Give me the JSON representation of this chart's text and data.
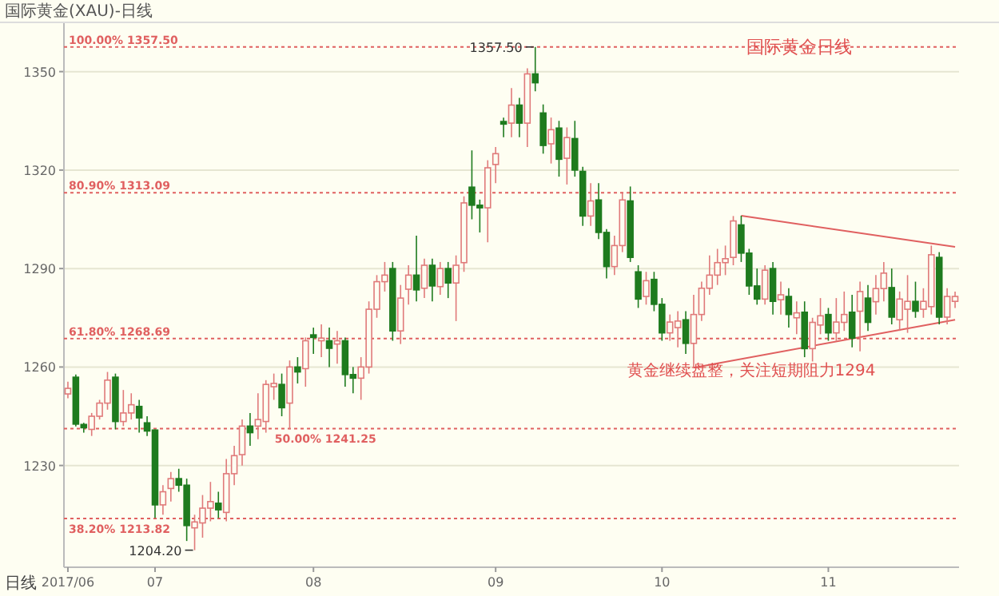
{
  "chart_data": {
    "type": "candlestick",
    "title": "国际黄金(XAU)-日线",
    "xlabel": "日线",
    "categories": [
      "2017/06",
      null,
      null,
      null,
      null,
      null,
      null,
      null,
      null,
      null,
      null,
      "07",
      null,
      null,
      null,
      null,
      null,
      null,
      null,
      null,
      null,
      null,
      null,
      null,
      null,
      null,
      null,
      null,
      null,
      null,
      null,
      "08",
      null,
      null,
      null,
      null,
      null,
      null,
      null,
      null,
      null,
      null,
      null,
      null,
      null,
      null,
      null,
      null,
      null,
      null,
      null,
      null,
      null,
      null,
      "09",
      null,
      null,
      null,
      null,
      null,
      null,
      null,
      null,
      null,
      null,
      null,
      null,
      null,
      null,
      null,
      null,
      null,
      null,
      null,
      null,
      "10",
      null,
      null,
      null,
      null,
      null,
      null,
      null,
      null,
      null,
      null,
      null,
      null,
      null,
      null,
      null,
      null,
      null,
      null,
      null,
      null,
      "11",
      null,
      null,
      null,
      null,
      null,
      null,
      null,
      null,
      null,
      null,
      null,
      null,
      null,
      null,
      null,
      null
    ],
    "ohlc": [
      [
        1251.8,
        1255.5,
        1250.5,
        1253.5
      ],
      [
        1256.9,
        1257.7,
        1241.9,
        1242.6
      ],
      [
        1242.5,
        1243,
        1240,
        1241.5
      ],
      [
        1241,
        1246,
        1239,
        1245
      ],
      [
        1245,
        1250,
        1244,
        1249
      ],
      [
        1249,
        1258.5,
        1247,
        1256
      ],
      [
        1256.9,
        1258,
        1241,
        1243.4
      ],
      [
        1243.4,
        1253,
        1242,
        1246
      ],
      [
        1246,
        1252,
        1244,
        1248.5
      ],
      [
        1248,
        1250,
        1240,
        1244.5
      ],
      [
        1243,
        1245,
        1239,
        1240.5
      ],
      [
        1240.8,
        1241,
        1214,
        1218
      ],
      [
        1218,
        1224,
        1215,
        1222
      ],
      [
        1223,
        1228,
        1219,
        1226
      ],
      [
        1226,
        1229,
        1222,
        1224
      ],
      [
        1224,
        1226,
        1207,
        1211.7
      ],
      [
        1211,
        1215,
        1204.2,
        1212.8
      ],
      [
        1212.5,
        1221,
        1208,
        1217
      ],
      [
        1217,
        1225,
        1213,
        1219
      ],
      [
        1218.5,
        1222,
        1214,
        1216.5
      ],
      [
        1215.7,
        1232,
        1213,
        1227.5
      ],
      [
        1227.5,
        1236,
        1224,
        1233
      ],
      [
        1233.3,
        1244,
        1230,
        1242
      ],
      [
        1242,
        1246,
        1236,
        1240
      ],
      [
        1242,
        1252,
        1238,
        1244
      ],
      [
        1243.4,
        1256,
        1240,
        1254.7
      ],
      [
        1254,
        1258,
        1250,
        1255
      ],
      [
        1254.7,
        1258,
        1245,
        1247.6
      ],
      [
        1249,
        1262,
        1241,
        1260
      ],
      [
        1260,
        1263,
        1255,
        1258.5
      ],
      [
        1259.5,
        1269,
        1254,
        1268
      ],
      [
        1269.8,
        1272,
        1264,
        1269
      ],
      [
        1268,
        1273,
        1263,
        1268.8
      ],
      [
        1268,
        1272,
        1260,
        1265.7
      ],
      [
        1267,
        1271,
        1261,
        1268
      ],
      [
        1268,
        1269,
        1254,
        1257.7
      ],
      [
        1257.7,
        1260,
        1252,
        1256.6
      ],
      [
        1256.6,
        1263,
        1250,
        1260
      ],
      [
        1260,
        1280,
        1258,
        1277.6
      ],
      [
        1277.6,
        1288,
        1275,
        1286
      ],
      [
        1286,
        1292,
        1283,
        1288
      ],
      [
        1290,
        1292,
        1268,
        1271
      ],
      [
        1271,
        1285,
        1267,
        1281
      ],
      [
        1283.7,
        1291,
        1279,
        1288
      ],
      [
        1288,
        1300,
        1280,
        1283.5
      ],
      [
        1284,
        1293,
        1281,
        1291
      ],
      [
        1291,
        1293,
        1280,
        1284.7
      ],
      [
        1284.5,
        1292,
        1282,
        1290
      ],
      [
        1290,
        1292,
        1281,
        1285.6
      ],
      [
        1285.6,
        1294,
        1274,
        1291
      ],
      [
        1291.8,
        1312,
        1289,
        1310
      ],
      [
        1314.8,
        1326,
        1305,
        1309.3
      ],
      [
        1309.3,
        1311,
        1301,
        1308.5
      ],
      [
        1308.5,
        1323,
        1298,
        1320.7
      ],
      [
        1321.7,
        1327,
        1316,
        1325
      ],
      [
        1334.8,
        1336,
        1330,
        1334
      ],
      [
        1334.3,
        1345,
        1330,
        1339.8
      ],
      [
        1339.8,
        1342,
        1330,
        1334.3
      ],
      [
        1334.3,
        1351,
        1327,
        1349.3
      ],
      [
        1349.3,
        1357.5,
        1344,
        1346.6
      ],
      [
        1337.4,
        1340,
        1325,
        1327.5
      ],
      [
        1328,
        1336,
        1322,
        1332.3
      ],
      [
        1332.8,
        1335,
        1318,
        1323.3
      ],
      [
        1323.6,
        1333,
        1315.6,
        1329.9
      ],
      [
        1329.6,
        1335,
        1318,
        1320
      ],
      [
        1319.6,
        1321,
        1303,
        1306
      ],
      [
        1306,
        1316,
        1303,
        1310.6
      ],
      [
        1310.9,
        1316,
        1299,
        1301
      ],
      [
        1301,
        1302,
        1287,
        1290.6
      ],
      [
        1290.6,
        1300,
        1288,
        1297
      ],
      [
        1297,
        1313,
        1295,
        1310.9
      ],
      [
        1310.6,
        1315,
        1292,
        1293.4
      ],
      [
        1289,
        1291,
        1278,
        1280.7
      ],
      [
        1281.5,
        1289,
        1279,
        1286.3
      ],
      [
        1286.7,
        1289,
        1277,
        1279.1
      ],
      [
        1279.1,
        1281,
        1268,
        1270.4
      ],
      [
        1270.4,
        1276,
        1268,
        1273.7
      ],
      [
        1272,
        1277,
        1266,
        1274
      ],
      [
        1274.4,
        1277,
        1264,
        1267.2
      ],
      [
        1267.2,
        1282,
        1259.8,
        1276
      ],
      [
        1276,
        1286,
        1274,
        1284
      ],
      [
        1284,
        1294,
        1282,
        1288
      ],
      [
        1288,
        1296,
        1285,
        1291.8
      ],
      [
        1291.8,
        1297,
        1288,
        1293
      ],
      [
        1293.4,
        1306,
        1291,
        1304.5
      ],
      [
        1303.3,
        1306.1,
        1292,
        1294.7
      ],
      [
        1294.7,
        1296,
        1282,
        1284.7
      ],
      [
        1284.7,
        1290,
        1279,
        1280.7
      ],
      [
        1280.7,
        1291,
        1279,
        1289.5
      ],
      [
        1290,
        1292,
        1276,
        1280
      ],
      [
        1280.5,
        1286,
        1276,
        1282
      ],
      [
        1281.5,
        1284,
        1272,
        1276
      ],
      [
        1275,
        1280,
        1270,
        1276.5
      ],
      [
        1276.7,
        1280,
        1263,
        1265.6
      ],
      [
        1265.6,
        1275,
        1261.7,
        1273.6
      ],
      [
        1272.8,
        1281,
        1270,
        1275.6
      ],
      [
        1276,
        1278,
        1268,
        1270.4
      ],
      [
        1270.4,
        1281,
        1268,
        1273.7
      ],
      [
        1273.6,
        1283,
        1271,
        1276
      ],
      [
        1276.7,
        1282,
        1266,
        1268.8
      ],
      [
        1277,
        1286,
        1264.8,
        1283
      ],
      [
        1281,
        1285,
        1271,
        1273.6
      ],
      [
        1279.9,
        1288,
        1276,
        1283.9
      ],
      [
        1283.9,
        1292,
        1280,
        1288.6
      ],
      [
        1284.2,
        1290,
        1273,
        1275.2
      ],
      [
        1274.4,
        1283,
        1271,
        1280.7
      ],
      [
        1277.6,
        1288,
        1270.4,
        1280
      ],
      [
        1280,
        1286,
        1275,
        1277
      ],
      [
        1277.6,
        1284,
        1275,
        1280
      ],
      [
        1278.4,
        1297,
        1276,
        1294.2
      ],
      [
        1293.4,
        1295,
        1273,
        1275.2
      ],
      [
        1275.2,
        1284,
        1273,
        1281.5
      ],
      [
        1280,
        1283,
        1278,
        1281.5
      ]
    ],
    "series": [
      {
        "type": "line",
        "color": "#e06060",
        "values": [
          null,
          null,
          null,
          null,
          null,
          null,
          null,
          null,
          null,
          null,
          null,
          null,
          null,
          null,
          null,
          null,
          null,
          null,
          null,
          null,
          null,
          null,
          null,
          null,
          null,
          null,
          null,
          null,
          null,
          null,
          null,
          null,
          null,
          null,
          null,
          null,
          null,
          null,
          null,
          null,
          null,
          null,
          null,
          null,
          null,
          null,
          null,
          null,
          null,
          null,
          null,
          null,
          null,
          null,
          null,
          null,
          null,
          null,
          null,
          null,
          null,
          null,
          null,
          null,
          null,
          null,
          null,
          null,
          null,
          null,
          null,
          null,
          null,
          null,
          null,
          null,
          null,
          null,
          null,
          null,
          null,
          null,
          null,
          null,
          null,
          1306.1,
          null,
          null,
          null,
          null,
          null,
          null,
          null,
          null,
          null,
          null,
          null,
          null,
          null,
          null,
          null,
          null,
          null,
          null,
          null,
          null,
          null,
          null,
          null,
          null,
          null,
          null,
          1296.6
        ]
      },
      {
        "type": "line",
        "color": "#e06060",
        "values": [
          null,
          null,
          null,
          null,
          null,
          null,
          null,
          null,
          null,
          null,
          null,
          null,
          null,
          null,
          null,
          null,
          null,
          null,
          null,
          null,
          null,
          null,
          null,
          null,
          null,
          null,
          null,
          null,
          null,
          null,
          null,
          null,
          null,
          null,
          null,
          null,
          null,
          null,
          null,
          null,
          null,
          null,
          null,
          null,
          null,
          null,
          null,
          null,
          null,
          null,
          null,
          null,
          null,
          null,
          null,
          null,
          null,
          null,
          null,
          null,
          null,
          null,
          null,
          null,
          null,
          null,
          null,
          null,
          null,
          null,
          null,
          null,
          null,
          null,
          null,
          null,
          null,
          null,
          null,
          1259.8,
          null,
          null,
          null,
          null,
          null,
          null,
          null,
          null,
          null,
          null,
          null,
          null,
          null,
          null,
          null,
          null,
          null,
          null,
          null,
          null,
          null,
          null,
          null,
          null,
          null,
          null,
          null,
          null,
          null,
          null,
          null,
          null,
          1274.4
        ]
      }
    ],
    "ylim": [
      1199,
      1365
    ],
    "yticks": [
      1230,
      1260,
      1290,
      1320,
      1350
    ],
    "grid": "y",
    "ref_lines": [
      {
        "axis": "y",
        "value": 1357.5,
        "label": "100.00% 1357.50",
        "color": "#e06060",
        "line_style": "dotted"
      },
      {
        "axis": "y",
        "value": 1313.09,
        "label": "80.90% 1313.09",
        "color": "#e06060",
        "line_style": "dotted"
      },
      {
        "axis": "y",
        "value": 1268.69,
        "label": "61.80% 1268.69",
        "color": "#e06060",
        "line_style": "dotted"
      },
      {
        "axis": "y",
        "value": 1241.25,
        "label": "50.00% 1241.25",
        "color": "#e06060",
        "line_style": "dotted"
      },
      {
        "axis": "y",
        "value": 1213.82,
        "label": "38.20% 1213.82",
        "color": "#e06060",
        "line_style": "dotted"
      }
    ],
    "annotations": [
      {
        "text": "1357.50",
        "y": 1357.5
      },
      "1204.20",
      "国际黄金日线",
      "黄金继续盘整，关注短期阻力1294"
    ]
  }
}
